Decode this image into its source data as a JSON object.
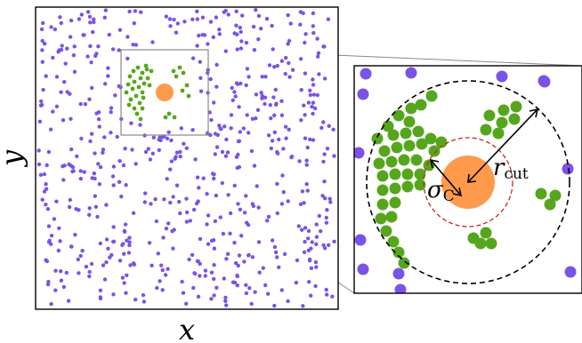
{
  "labels": {
    "x_axis": "x",
    "y_axis": "y",
    "sigma": "σ",
    "sigma_sub": "C",
    "r": "r",
    "r_sub": "cut"
  },
  "colors": {
    "background": "#ffffff",
    "frame": "#000000",
    "connector": "#888888",
    "zoom_box": "#888888",
    "particle": "#7b52e6",
    "cluster": "#55a61c",
    "colloid": "#ff9a4d",
    "inner_circle": "#cc2222",
    "outer_circle": "#000000"
  },
  "icons": {
    "arrow": "double-headed-arrow"
  }
}
